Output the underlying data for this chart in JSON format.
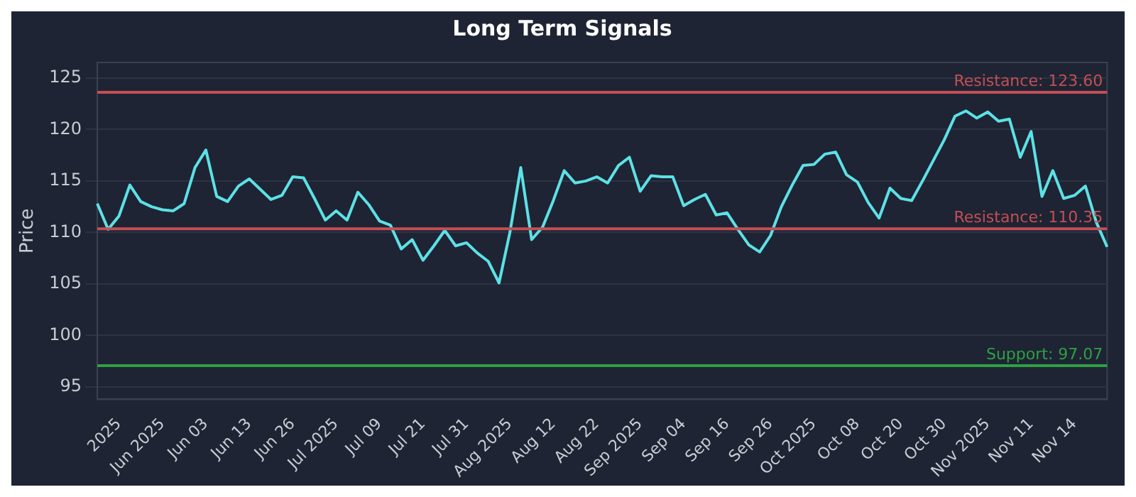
{
  "chart_data": {
    "type": "line",
    "title": "Long Term Signals",
    "ylabel": "Price",
    "categories": [
      null,
      null,
      "2025",
      null,
      null,
      null,
      "Jun 2025",
      null,
      null,
      null,
      "Jun 03",
      null,
      null,
      null,
      "Jun 13",
      null,
      null,
      null,
      "Jun 26",
      null,
      null,
      null,
      "Jul 2025",
      null,
      null,
      null,
      "Jul 09",
      null,
      null,
      null,
      "Jul 21",
      null,
      null,
      null,
      "Jul 31",
      null,
      null,
      null,
      "Aug 2025",
      null,
      null,
      null,
      "Aug 12",
      null,
      null,
      null,
      "Aug 22",
      null,
      null,
      null,
      "Sep 2025",
      null,
      null,
      null,
      "Sep 04",
      null,
      null,
      null,
      "Sep 16",
      null,
      null,
      null,
      "Sep 26",
      null,
      null,
      null,
      "Oct 2025",
      null,
      null,
      null,
      "Oct 08",
      null,
      null,
      null,
      "Oct 20",
      null,
      null,
      null,
      "Oct 30",
      null,
      null,
      null,
      "Nov 2025",
      null,
      null,
      null,
      "Nov 11",
      null,
      null,
      null,
      "Nov 14",
      null,
      null,
      null
    ],
    "series": [
      {
        "color": "#5ce1e6",
        "values": [
          112.8,
          110.3,
          111.6,
          114.6,
          113,
          112.5,
          112.2,
          112.1,
          112.8,
          116.3,
          118,
          113.5,
          113,
          114.5,
          115.2,
          114.2,
          113.2,
          113.6,
          115.4,
          115.3,
          113.3,
          111.2,
          112.1,
          111.2,
          113.9,
          112.7,
          111.1,
          110.7,
          108.4,
          109.3,
          107.3,
          108.7,
          110.2,
          108.7,
          109,
          108,
          107.2,
          105.1,
          110,
          116.3,
          109.3,
          110.5,
          113.1,
          116,
          114.8,
          115,
          115.4,
          114.8,
          116.5,
          117.3,
          114,
          115.5,
          115.4,
          115.4,
          112.6,
          113.2,
          113.7,
          111.7,
          111.9,
          110.3,
          108.8,
          108.1,
          109.7,
          112.5,
          114.6,
          116.5,
          116.6,
          117.6,
          117.8,
          115.6,
          114.9,
          112.9,
          111.4,
          114.3,
          113.3,
          113.1,
          115,
          117,
          119,
          121.3,
          121.8,
          121.1,
          121.7,
          120.8,
          121,
          117.3,
          119.8,
          113.5,
          116,
          113.3,
          113.6,
          114.5,
          111,
          108.6
        ]
      }
    ],
    "ylim": [
      93.8,
      126.5
    ],
    "yticks": [
      95,
      100,
      105,
      110,
      115,
      120,
      125
    ],
    "grid": "y",
    "legend": false,
    "marker": "none",
    "line_style": "solid",
    "ref_lines": [
      {
        "axis": "y",
        "value": 123.6,
        "label": "Resistance: 123.60",
        "color": "#c44e55"
      },
      {
        "axis": "y",
        "value": 110.35,
        "label": "Resistance: 110.35",
        "color": "#c44e55"
      },
      {
        "axis": "y",
        "value": 97.07,
        "label": "Support: 97.07",
        "color": "#2ea043"
      }
    ]
  }
}
